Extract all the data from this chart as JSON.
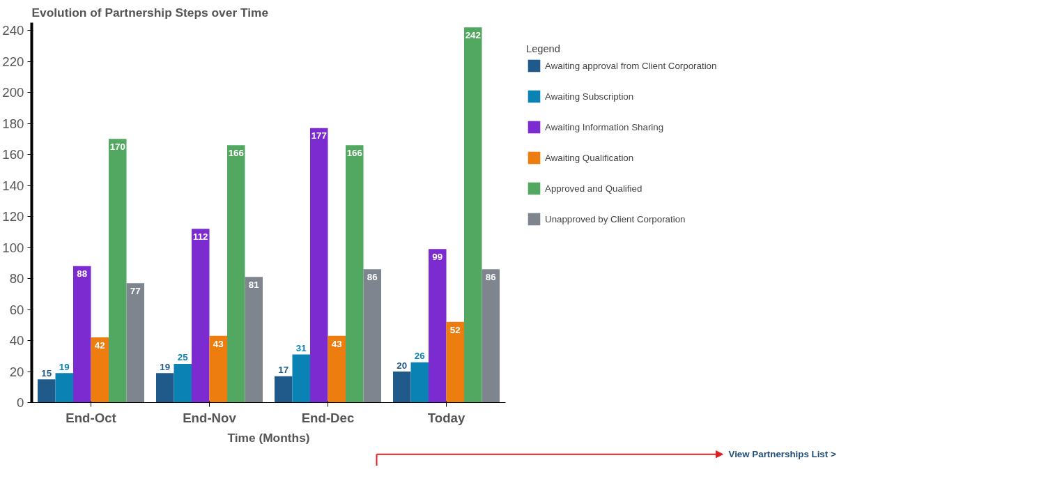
{
  "chart_data": {
    "type": "bar",
    "title": "Evolution of Partnership Steps over Time",
    "xlabel": "Time (Months)",
    "legend_title": "Legend",
    "categories": [
      "End-Oct",
      "End-Nov",
      "End-Dec",
      "Today"
    ],
    "series": [
      {
        "name": "Awaiting approval from Client Corporation",
        "color": "#1f5a8a",
        "values": [
          15,
          19,
          17,
          20
        ]
      },
      {
        "name": "Awaiting Subscription",
        "color": "#0a82b4",
        "values": [
          19,
          25,
          31,
          26
        ]
      },
      {
        "name": "Awaiting Information Sharing",
        "color": "#7b2bd0",
        "values": [
          88,
          112,
          177,
          99
        ]
      },
      {
        "name": "Awaiting Qualification",
        "color": "#ee7d0f",
        "values": [
          42,
          43,
          43,
          52
        ]
      },
      {
        "name": "Approved and Qualified",
        "color": "#52a860",
        "values": [
          170,
          166,
          166,
          242
        ]
      },
      {
        "name": "Unapproved by Client Corporation",
        "color": "#7f858e",
        "values": [
          77,
          81,
          86,
          86
        ]
      }
    ],
    "ylim": [
      0,
      245
    ],
    "yticks": [
      0,
      20,
      40,
      60,
      80,
      100,
      120,
      140,
      160,
      180,
      200,
      220,
      240
    ],
    "grid": false,
    "legend": "right",
    "data_labels": true,
    "annotations": [
      "View Partnerships List >"
    ]
  }
}
